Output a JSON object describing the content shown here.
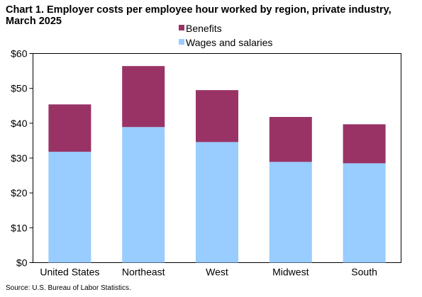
{
  "chart_data": {
    "type": "bar",
    "stacked": true,
    "title": "Chart 1. Employer costs per employee hour worked by region, private industry, March 2025",
    "categories": [
      "United States",
      "Northeast",
      "West",
      "Midwest",
      "South"
    ],
    "series": [
      {
        "name": "Wages and salaries",
        "values": [
          31.8,
          38.9,
          34.6,
          28.9,
          28.5
        ],
        "color": "#99ccff"
      },
      {
        "name": "Benefits",
        "values": [
          13.6,
          17.5,
          14.9,
          12.9,
          11.2
        ],
        "color": "#993366"
      }
    ],
    "legend_order": [
      "Benefits",
      "Wages and salaries"
    ],
    "legend_position": "top",
    "ylim": [
      0,
      60
    ],
    "yticks": [
      0,
      10,
      20,
      30,
      40,
      50,
      60
    ],
    "ytick_labels": [
      "$0",
      "$10",
      "$20",
      "$30",
      "$40",
      "$50",
      "$60"
    ],
    "grid": false,
    "source": "Source: U.S. Bureau of Labor Statistics."
  }
}
